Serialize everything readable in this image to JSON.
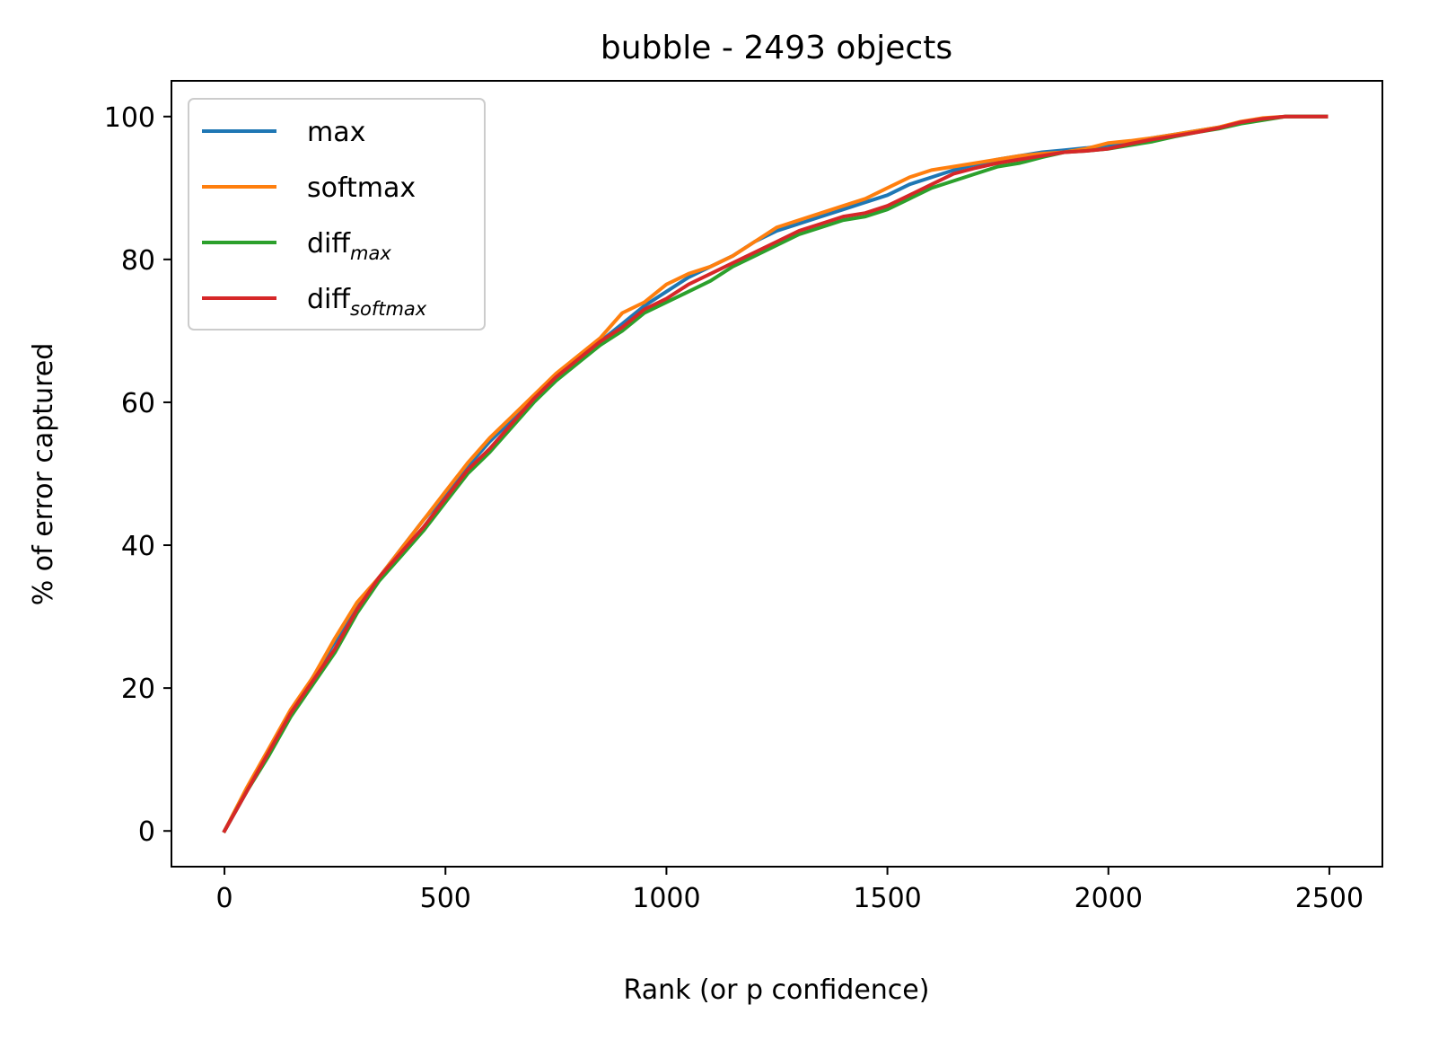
{
  "chart_data": {
    "type": "line",
    "title": "bubble - 2493 objects",
    "xlabel": "Rank (or p confidence)",
    "ylabel": "% of error captured",
    "xlim": [
      -120,
      2620
    ],
    "ylim": [
      -5,
      105
    ],
    "xticks": [
      0,
      500,
      1000,
      1500,
      2000,
      2500
    ],
    "yticks": [
      0,
      20,
      40,
      60,
      80,
      100
    ],
    "grid": false,
    "legend": {
      "position": "upper-left"
    },
    "series": [
      {
        "name": "max",
        "name_sub": "",
        "color": "#1f77b4",
        "x": [
          0,
          50,
          100,
          150,
          200,
          250,
          300,
          350,
          400,
          450,
          500,
          550,
          600,
          650,
          700,
          750,
          800,
          850,
          900,
          950,
          1000,
          1050,
          1100,
          1150,
          1200,
          1250,
          1300,
          1350,
          1400,
          1450,
          1500,
          1550,
          1600,
          1650,
          1700,
          1750,
          1800,
          1850,
          1900,
          1950,
          2000,
          2050,
          2100,
          2150,
          2200,
          2250,
          2300,
          2350,
          2400,
          2450,
          2493
        ],
        "y": [
          0,
          5.5,
          11,
          16.5,
          21.5,
          26.5,
          31.5,
          35.5,
          39.5,
          43.5,
          47,
          51,
          54.5,
          57.5,
          60.5,
          63.5,
          66,
          68.5,
          71,
          73.5,
          75.5,
          77.5,
          79,
          80.5,
          82.5,
          84,
          85,
          86,
          87,
          88,
          89,
          90.5,
          91.5,
          92.5,
          93.3,
          94,
          94.5,
          95,
          95.3,
          95.6,
          96,
          96.5,
          97,
          97.5,
          98,
          98.5,
          99.2,
          99.7,
          100,
          100,
          100
        ]
      },
      {
        "name": "softmax",
        "name_sub": "",
        "color": "#ff7f0e",
        "x": [
          0,
          50,
          100,
          150,
          200,
          250,
          300,
          350,
          400,
          450,
          500,
          550,
          600,
          650,
          700,
          750,
          800,
          850,
          900,
          950,
          1000,
          1050,
          1100,
          1150,
          1200,
          1250,
          1300,
          1350,
          1400,
          1450,
          1500,
          1550,
          1600,
          1650,
          1700,
          1750,
          1800,
          1850,
          1900,
          1950,
          2000,
          2050,
          2100,
          2150,
          2200,
          2250,
          2300,
          2350,
          2400,
          2450,
          2493
        ],
        "y": [
          0,
          6,
          11.5,
          17,
          21.5,
          27,
          32,
          35.5,
          39.5,
          43.5,
          47.5,
          51.5,
          55,
          58,
          61,
          64,
          66.5,
          69,
          72.5,
          74,
          76.5,
          78,
          79,
          80.5,
          82.5,
          84.5,
          85.5,
          86.5,
          87.5,
          88.5,
          90,
          91.5,
          92.5,
          93,
          93.5,
          94,
          94.5,
          94.8,
          95,
          95.5,
          96.3,
          96.6,
          97,
          97.5,
          98,
          98.5,
          99.3,
          99.8,
          100,
          100,
          100
        ]
      },
      {
        "name": "diff",
        "name_sub": "max",
        "color": "#2ca02c",
        "x": [
          0,
          50,
          100,
          150,
          200,
          250,
          300,
          350,
          400,
          450,
          500,
          550,
          600,
          650,
          700,
          750,
          800,
          850,
          900,
          950,
          1000,
          1050,
          1100,
          1150,
          1200,
          1250,
          1300,
          1350,
          1400,
          1450,
          1500,
          1550,
          1600,
          1650,
          1700,
          1750,
          1800,
          1850,
          1900,
          1950,
          2000,
          2050,
          2100,
          2150,
          2200,
          2250,
          2300,
          2350,
          2400,
          2450,
          2493
        ],
        "y": [
          0,
          5.5,
          10.5,
          16,
          20.5,
          25,
          30.5,
          35,
          38.5,
          42,
          46,
          50,
          53,
          56.5,
          60,
          63,
          65.5,
          68,
          70,
          72.5,
          74,
          75.5,
          77,
          79,
          80.5,
          82,
          83.5,
          84.5,
          85.5,
          86,
          87,
          88.5,
          90,
          91,
          92,
          93,
          93.5,
          94.3,
          95,
          95.2,
          95.5,
          96,
          96.5,
          97.2,
          97.8,
          98.3,
          99,
          99.5,
          100,
          100,
          100
        ]
      },
      {
        "name": "diff",
        "name_sub": "softmax",
        "color": "#d62728",
        "x": [
          0,
          50,
          100,
          150,
          200,
          250,
          300,
          350,
          400,
          450,
          500,
          550,
          600,
          650,
          700,
          750,
          800,
          850,
          900,
          950,
          1000,
          1050,
          1100,
          1150,
          1200,
          1250,
          1300,
          1350,
          1400,
          1450,
          1500,
          1550,
          1600,
          1650,
          1700,
          1750,
          1800,
          1850,
          1900,
          1950,
          2000,
          2050,
          2100,
          2150,
          2200,
          2250,
          2300,
          2350,
          2400,
          2450,
          2493
        ],
        "y": [
          0,
          5.5,
          11,
          16.5,
          21,
          25.5,
          31,
          35.5,
          39,
          42.5,
          46.5,
          50.5,
          53.5,
          57,
          60.5,
          63.5,
          66,
          68.5,
          70.5,
          73,
          74.5,
          76.5,
          78,
          79.5,
          81,
          82.5,
          84,
          85,
          86,
          86.5,
          87.5,
          89,
          90.5,
          92,
          92.8,
          93.5,
          94,
          94.5,
          95,
          95.2,
          95.5,
          96.2,
          96.8,
          97.3,
          97.8,
          98.4,
          99.2,
          99.7,
          100,
          100,
          100
        ]
      }
    ]
  }
}
